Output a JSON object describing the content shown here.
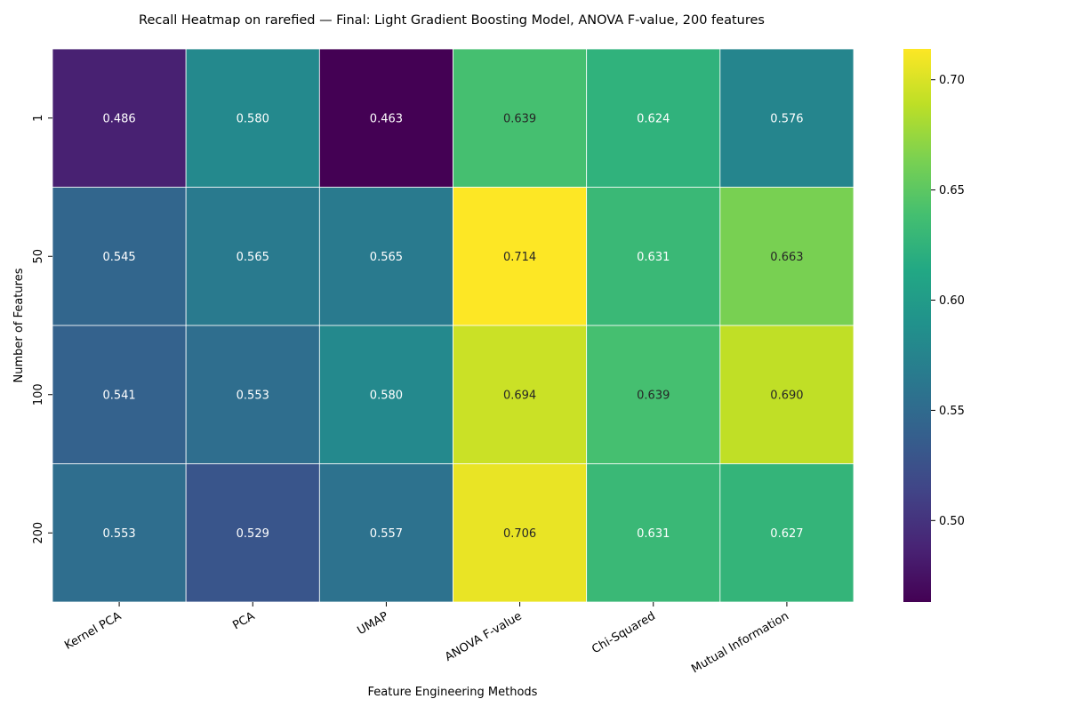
{
  "chart_data": {
    "type": "heatmap",
    "title": "Recall Heatmap on rarefied — Final: Light Gradient Boosting Model, ANOVA F-value, 200 features",
    "xlabel": "Feature Engineering Methods",
    "ylabel": "Number of Features",
    "x_categories": [
      "Kernel PCA",
      "PCA",
      "UMAP",
      "ANOVA F-value",
      "Chi-Squared",
      "Mutual Information"
    ],
    "y_categories": [
      "1",
      "50",
      "100",
      "200"
    ],
    "values": [
      [
        0.486,
        0.58,
        0.463,
        0.639,
        0.624,
        0.576
      ],
      [
        0.545,
        0.565,
        0.565,
        0.714,
        0.631,
        0.663
      ],
      [
        0.541,
        0.553,
        0.58,
        0.694,
        0.639,
        0.69
      ],
      [
        0.553,
        0.529,
        0.557,
        0.706,
        0.631,
        0.627
      ]
    ],
    "value_labels": [
      [
        "0.486",
        "0.580",
        "0.463",
        "0.639",
        "0.624",
        "0.576"
      ],
      [
        "0.545",
        "0.565",
        "0.565",
        "0.714",
        "0.631",
        "0.663"
      ],
      [
        "0.541",
        "0.553",
        "0.580",
        "0.694",
        "0.639",
        "0.690"
      ],
      [
        "0.553",
        "0.529",
        "0.557",
        "0.706",
        "0.631",
        "0.627"
      ]
    ],
    "colormap": "viridis",
    "vmin": 0.463,
    "vmax": 0.714,
    "colorbar_ticks": [
      0.5,
      0.55,
      0.6,
      0.65,
      0.7
    ],
    "colorbar_tick_labels": [
      "0.50",
      "0.55",
      "0.60",
      "0.65",
      "0.70"
    ],
    "grid": false,
    "legend": "colorbar-right"
  }
}
